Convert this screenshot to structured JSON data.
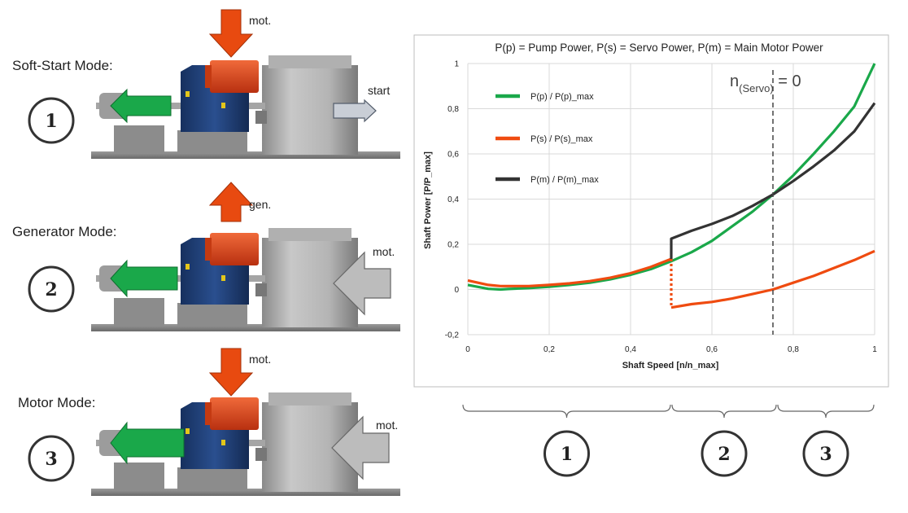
{
  "modes": [
    {
      "label": "Soft-Start Mode:",
      "number": "1",
      "top_arrow": "mot.",
      "right_arrow": "start"
    },
    {
      "label": "Generator Mode:",
      "number": "2",
      "top_arrow": "gen.",
      "right_arrow": "mot."
    },
    {
      "label": "Motor Mode:",
      "number": "3",
      "top_arrow": "mot.",
      "right_arrow": "mot."
    }
  ],
  "ranges": [
    {
      "number": "1",
      "from": 0,
      "to": 0.5
    },
    {
      "number": "2",
      "from": 0.5,
      "to": 0.76
    },
    {
      "number": "3",
      "from": 0.76,
      "to": 1.0
    }
  ],
  "colors": {
    "pump": "#1aa84a",
    "servo": "#ef4b10",
    "motor": "#333333",
    "machine_blue": "#1f3a6e",
    "arrow_red": "#e84a10",
    "arrow_gray": "#bcbcbc"
  },
  "chart_data": {
    "type": "line",
    "title": "P(p) = Pump Power, P(s) = Servo Power, P(m) = Main Motor Power",
    "xlabel": "Shaft Speed [n/n_max]",
    "ylabel": "Shaft Power [P/P_max]",
    "xlim": [
      0,
      1
    ],
    "ylim": [
      -0.2,
      1
    ],
    "x_ticks": [
      "0",
      "0,2",
      "0,4",
      "0,6",
      "0,8",
      "1"
    ],
    "y_ticks": [
      "-0,2",
      "0",
      "0,2",
      "0,4",
      "0,6",
      "0,8",
      "1"
    ],
    "grid": true,
    "legend_position": "top-left",
    "annotation": {
      "text_main": "n",
      "text_sub": "(Servo)",
      "text_tail": " = 0",
      "x": 0.75
    },
    "series": [
      {
        "name": "P(p) / P(p)_max",
        "color": "#1aa84a",
        "x": [
          0,
          0.05,
          0.08,
          0.1,
          0.15,
          0.2,
          0.25,
          0.3,
          0.35,
          0.4,
          0.45,
          0.5,
          0.55,
          0.6,
          0.65,
          0.7,
          0.75,
          0.8,
          0.85,
          0.9,
          0.95,
          1.0
        ],
        "y": [
          0.02,
          0.003,
          0.0,
          0.002,
          0.006,
          0.012,
          0.02,
          0.03,
          0.045,
          0.065,
          0.09,
          0.125,
          0.165,
          0.215,
          0.28,
          0.345,
          0.42,
          0.505,
          0.6,
          0.7,
          0.81,
          1.0
        ]
      },
      {
        "name": "P(s) / P(s)_max",
        "color": "#ef4b10",
        "x": [
          0,
          0.05,
          0.08,
          0.1,
          0.15,
          0.2,
          0.25,
          0.3,
          0.35,
          0.4,
          0.45,
          0.5,
          0.5,
          0.55,
          0.6,
          0.65,
          0.7,
          0.75,
          0.8,
          0.85,
          0.9,
          0.95,
          1.0
        ],
        "y": [
          0.04,
          0.02,
          0.015,
          0.015,
          0.015,
          0.02,
          0.027,
          0.037,
          0.052,
          0.072,
          0.1,
          0.135,
          -0.08,
          -0.065,
          -0.055,
          -0.04,
          -0.02,
          0.0,
          0.03,
          0.06,
          0.095,
          0.13,
          0.17
        ],
        "dotted_segment": [
          0.5,
          0.135,
          -0.08
        ]
      },
      {
        "name": "P(m) / P(m)_max",
        "color": "#333333",
        "x": [
          0.5,
          0.5,
          0.55,
          0.6,
          0.65,
          0.7,
          0.75,
          0.8,
          0.85,
          0.9,
          0.95,
          1.0
        ],
        "y": [
          0.135,
          0.225,
          0.26,
          0.29,
          0.325,
          0.37,
          0.42,
          0.48,
          0.545,
          0.615,
          0.7,
          0.825
        ]
      }
    ]
  }
}
